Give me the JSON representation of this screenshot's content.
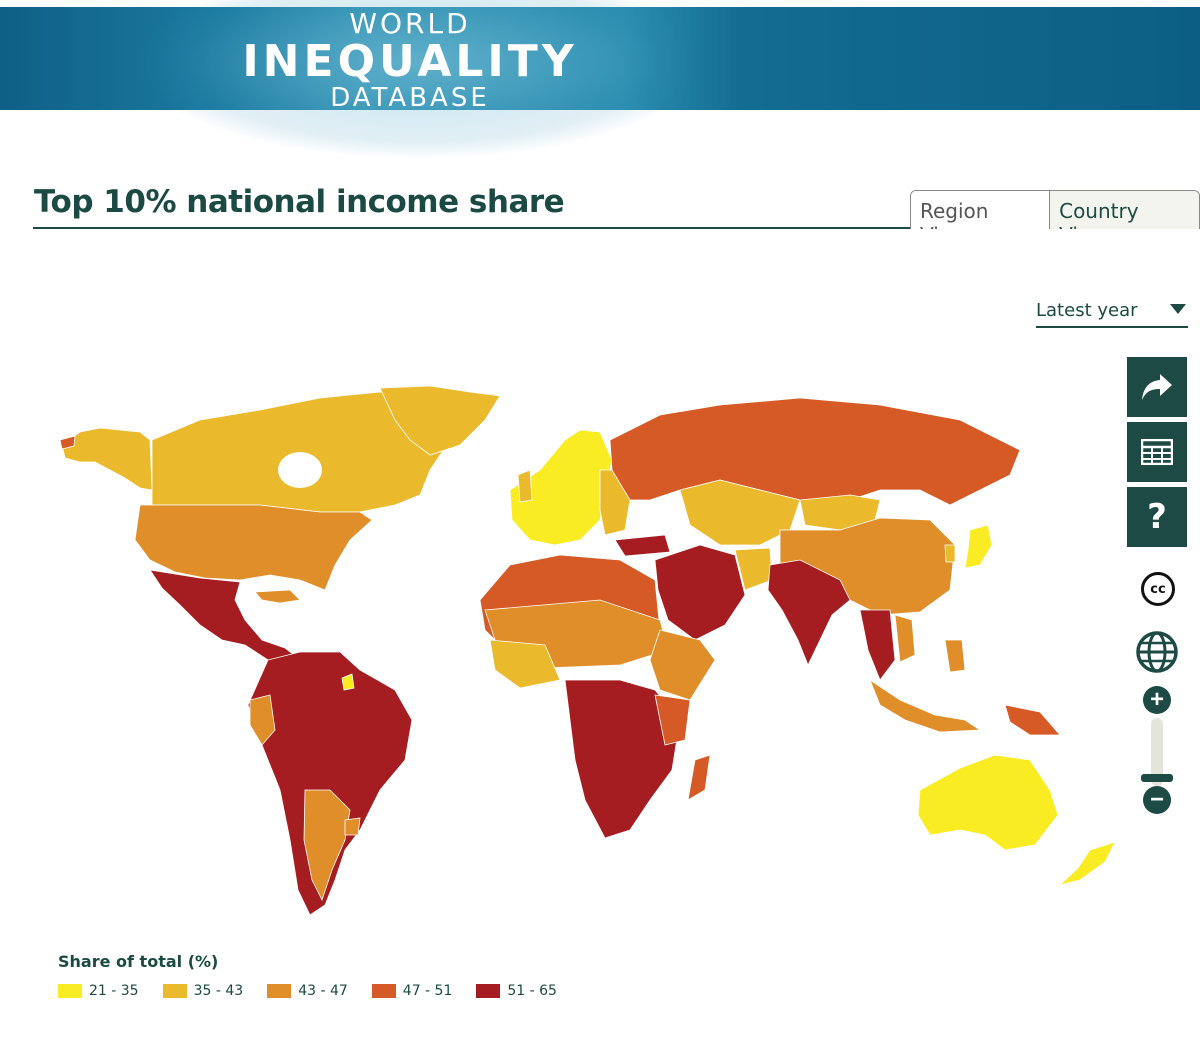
{
  "header": {
    "logo_line1": "WORLD",
    "logo_line2": "INEQUALITY",
    "logo_line3": "DATABASE"
  },
  "page_title": "Top 10% national income share",
  "view_toggle": {
    "region_label": "Region View",
    "country_label": "Country View",
    "active": "Country View"
  },
  "year_select": {
    "selected": "Latest year"
  },
  "tools": {
    "share_icon": "share-arrow-icon",
    "table_icon": "table-icon",
    "help_icon": "help-icon",
    "help_text": "?",
    "license_icon": "creative-commons-icon",
    "license_text": "cc",
    "globe_icon": "globe-icon",
    "zoom_in_text": "+",
    "zoom_out_text": "−",
    "zoom_level": 0.15
  },
  "legend": {
    "title": "Share of total (%)",
    "items": [
      {
        "label": "21 - 35",
        "color": "#f9ec22"
      },
      {
        "label": "35 - 43",
        "color": "#ebba2c"
      },
      {
        "label": "43 - 47",
        "color": "#e08e2a"
      },
      {
        "label": "47 - 51",
        "color": "#d65a26"
      },
      {
        "label": "51 - 65",
        "color": "#a51c21"
      }
    ]
  },
  "colors": {
    "brand_dark": "#1d4a45",
    "header_blue": "#0f5f86"
  }
}
